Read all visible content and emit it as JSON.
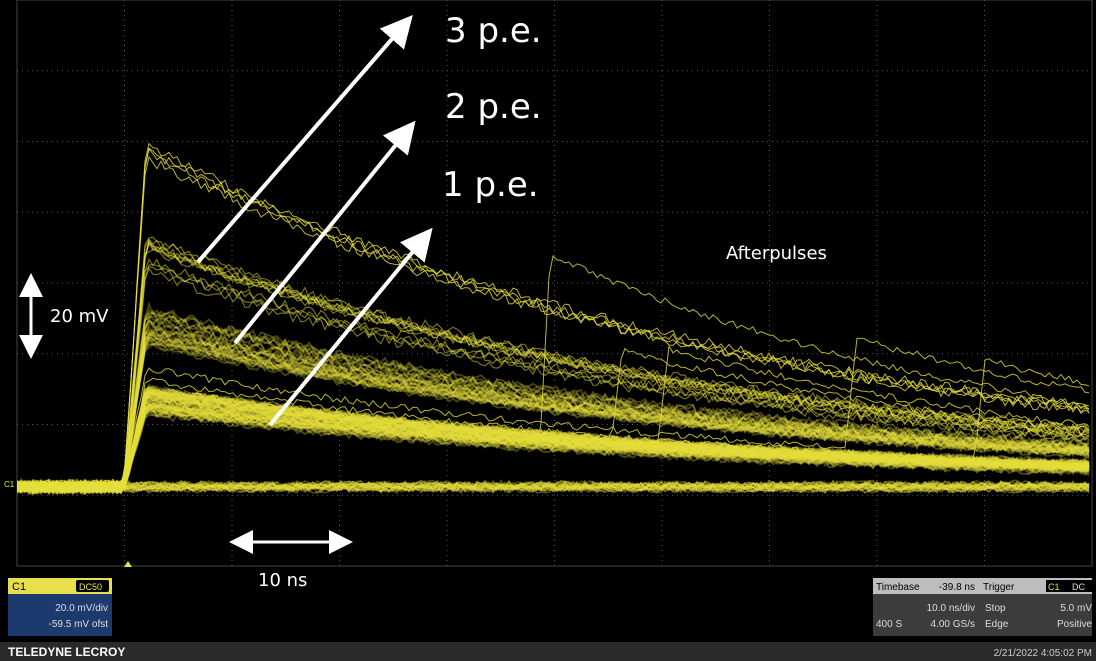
{
  "annotations": {
    "pe3": "3 p.e.",
    "pe2": "2 p.e.",
    "pe1": "1 p.e.",
    "afterpulses": "Afterpulses",
    "vscale": "20 mV",
    "hscale": "10 ns"
  },
  "channel": {
    "label": "C1",
    "coupling": "DC50",
    "vdiv": "20.0 mV/div",
    "offset": "-59.5 mV ofst",
    "trace_marker": "C1"
  },
  "timebase": {
    "label": "Timebase",
    "delay": "-39.8 ns",
    "tdiv": "10.0 ns/div",
    "samples": "400 S",
    "rate": "4.00 GS/s"
  },
  "trigger": {
    "label": "Trigger",
    "channel": "C1",
    "coupling": "DC",
    "mode": "Stop",
    "level": "5.0 mV",
    "type": "Edge",
    "slope": "Positive"
  },
  "footer": {
    "brand": "TELEDYNE LECROY",
    "datetime": "2/21/2022 4:05:02 PM"
  }
}
